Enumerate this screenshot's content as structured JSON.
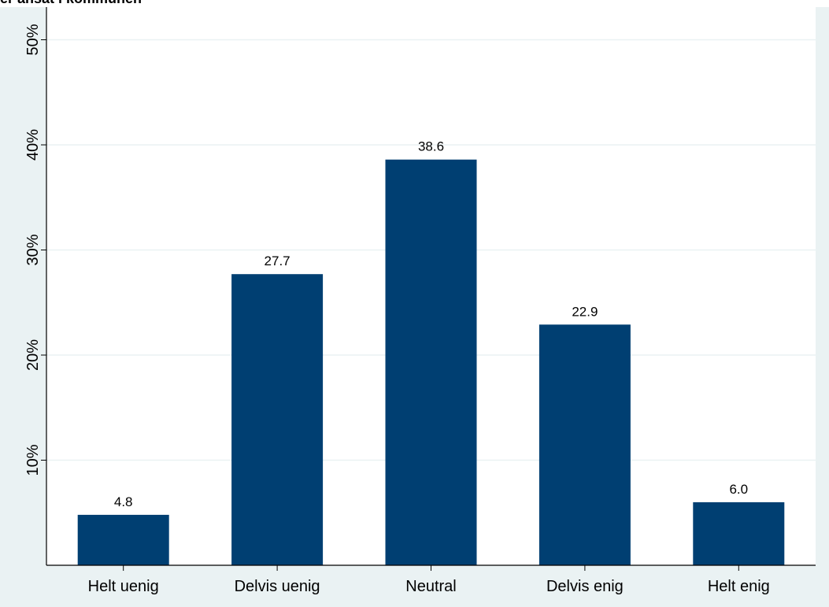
{
  "clipped_title": "er ansat i kommunen",
  "colors": {
    "bar": "#003f72",
    "plot_background": "#ffffff",
    "outer_background": "#eaf2f3",
    "grid": "#eaf2f3",
    "axis": "#000000"
  },
  "chart_data": {
    "type": "bar",
    "title": "",
    "xlabel": "",
    "ylabel": "",
    "categories": [
      "Helt uenig",
      "Delvis uenig",
      "Neutral",
      "Delvis enig",
      "Helt enig"
    ],
    "values": [
      4.8,
      27.7,
      38.6,
      22.9,
      6.0
    ],
    "data_labels": [
      "4.8",
      "27.7",
      "38.6",
      "22.9",
      "6.0"
    ],
    "ylim": [
      0,
      50
    ],
    "yticks": [
      10,
      20,
      30,
      40,
      50
    ],
    "ytick_labels": [
      "10%",
      "20%",
      "30%",
      "40%",
      "50%"
    ],
    "grid": true,
    "legend": "none"
  }
}
